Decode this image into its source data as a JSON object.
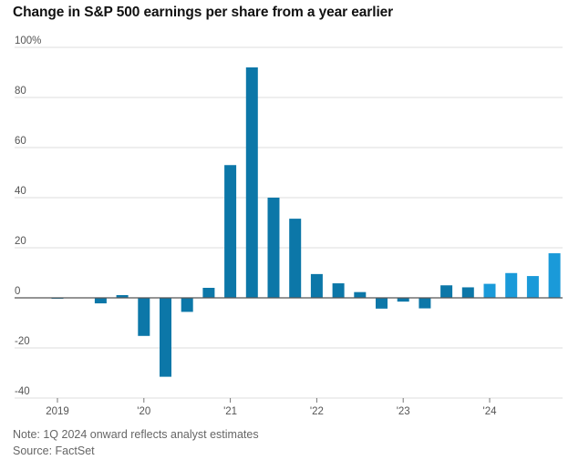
{
  "title": "Change in S&P 500 earnings per share from a year earlier",
  "note": "Note: 1Q 2024 onward reflects analyst estimates",
  "source": "Source: FactSet",
  "colors": {
    "actual": "#0c77a8",
    "estimate": "#1a9ad9",
    "grid": "#dcdcdc",
    "zero": "#555555"
  },
  "chart_data": {
    "type": "bar",
    "title": "Change in S&P 500 earnings per share from a year earlier",
    "ylim": [
      -40,
      100
    ],
    "y_ticks": [
      {
        "value": 100,
        "label": "100%"
      },
      {
        "value": 80,
        "label": "80"
      },
      {
        "value": 60,
        "label": "60"
      },
      {
        "value": 40,
        "label": "40"
      },
      {
        "value": 20,
        "label": "20"
      },
      {
        "value": 0,
        "label": "0"
      },
      {
        "value": -20,
        "label": "-20"
      },
      {
        "value": -40,
        "label": "-40"
      }
    ],
    "x_ticks": [
      {
        "index": 0,
        "label": "2019"
      },
      {
        "index": 4,
        "label": "'20"
      },
      {
        "index": 8,
        "label": "'21"
      },
      {
        "index": 12,
        "label": "'22"
      },
      {
        "index": 16,
        "label": "'23"
      },
      {
        "index": 20,
        "label": "'24"
      }
    ],
    "grid": true,
    "series": [
      {
        "values": [
          -0.3,
          0,
          -2.2,
          1.1,
          -15.2,
          -31.5,
          -5.6,
          4.0,
          53.0,
          92.0,
          40.0,
          31.6,
          9.5,
          5.8,
          2.3,
          -4.3,
          -1.5,
          -4.2,
          5.0,
          4.2,
          5.6,
          9.9,
          8.7,
          17.8
        ],
        "estimate_from_index": 20
      }
    ]
  }
}
